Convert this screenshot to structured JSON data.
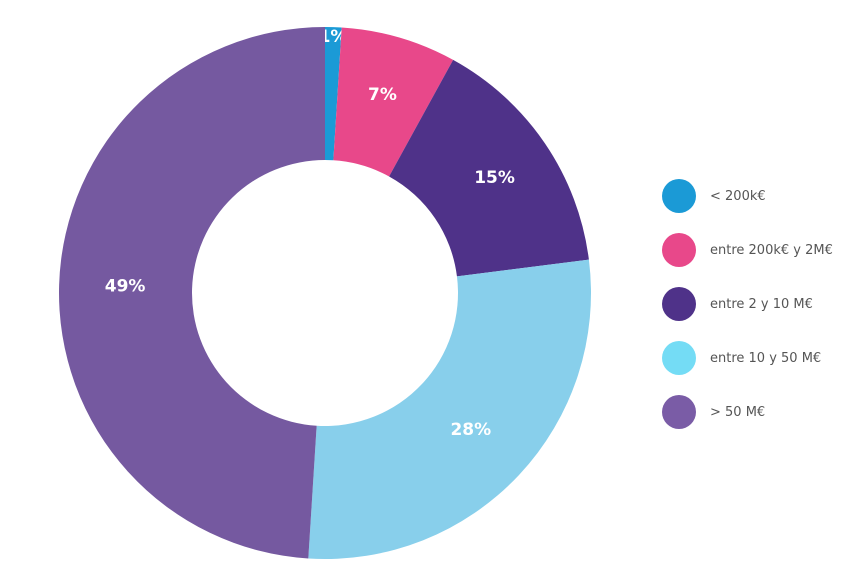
{
  "chart_data": {
    "type": "pie",
    "title": "",
    "donut": true,
    "categories": [
      "<  200k€",
      "entre 200k€ y 2M€",
      "entre 2 y 10 M€",
      "entre 10 y 50 M€",
      "> 50 M€"
    ],
    "values": [
      1,
      7,
      15,
      28,
      49
    ],
    "labels": [
      "1%",
      "7%",
      "15%",
      "28%",
      "49%"
    ],
    "colors": [
      "#1b9ad6",
      "#e8488a",
      "#4f3289",
      "#88cfeb",
      "#7559a0"
    ],
    "legend_colors": [
      "#1b9ad6",
      "#e8488a",
      "#4f3289",
      "#74dcf5",
      "#7a5ca6"
    ],
    "legend_position": "right"
  }
}
